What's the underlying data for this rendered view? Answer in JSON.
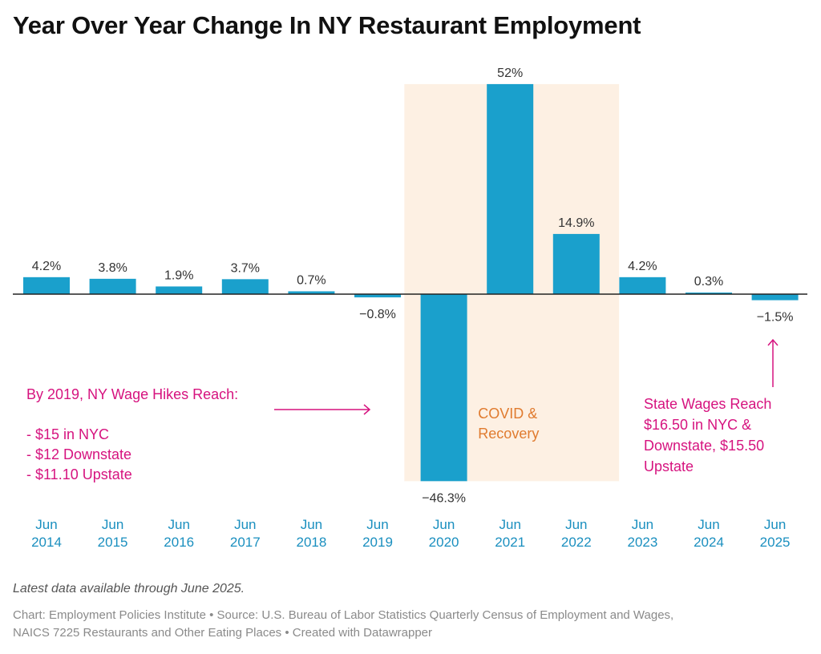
{
  "chart_data": {
    "type": "bar",
    "title": "Year Over Year Change In NY Restaurant Employment",
    "xlabel": "",
    "ylabel": "",
    "categories": [
      [
        "Jun",
        "2014"
      ],
      [
        "Jun",
        "2015"
      ],
      [
        "Jun",
        "2016"
      ],
      [
        "Jun",
        "2017"
      ],
      [
        "Jun",
        "2018"
      ],
      [
        "Jun",
        "2019"
      ],
      [
        "Jun",
        "2020"
      ],
      [
        "Jun",
        "2021"
      ],
      [
        "Jun",
        "2022"
      ],
      [
        "Jun",
        "2023"
      ],
      [
        "Jun",
        "2024"
      ],
      [
        "Jun",
        "2025"
      ]
    ],
    "values": [
      4.2,
      3.8,
      1.9,
      3.7,
      0.7,
      -0.8,
      -46.3,
      52,
      14.9,
      4.2,
      0.3,
      -1.5
    ],
    "value_labels": [
      "4.2%",
      "3.8%",
      "1.9%",
      "3.7%",
      "0.7%",
      "−0.8%",
      "−46.3%",
      "52%",
      "14.9%",
      "4.2%",
      "0.3%",
      "−1.5%"
    ],
    "unit": "%",
    "ylim": [
      -46.3,
      52
    ],
    "grid": false,
    "bar_color": "#1aa0cc",
    "highlight_band": {
      "from_category": 6,
      "to_category": 8,
      "label": [
        "COVID &",
        "Recovery"
      ],
      "color": "#fdf0e3",
      "label_color": "#e07b2f"
    },
    "annotations": [
      {
        "lines": [
          "By 2019, NY Wage Hikes Reach:",
          "",
          "- $15 in NYC",
          "- $12 Downstate",
          "- $11.10 Upstate"
        ],
        "arrow": "right",
        "points_to_category": 5,
        "color": "#d6137f"
      },
      {
        "lines": [
          "State Wages Reach",
          "$16.50 in NYC &",
          "Downstate, $15.50",
          "Upstate"
        ],
        "arrow": "up",
        "points_to_category": 11,
        "color": "#d6137f"
      }
    ]
  },
  "footer": {
    "note": "Latest data available through June 2025.",
    "source_line1": "Chart: Employment Policies Institute • Source: U.S. Bureau of Labor Statistics Quarterly Census of Employment and Wages,",
    "source_line2": "NAICS 7225 Restaurants and Other Eating Places • Created with Datawrapper"
  }
}
